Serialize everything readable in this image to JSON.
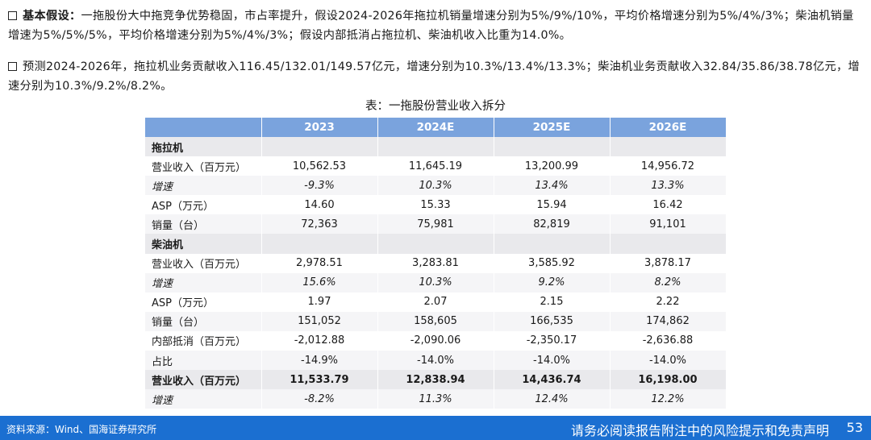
{
  "para1": {
    "lead": "基本假设：",
    "text": "一拖股份大中拖竞争优势稳固，市占率提升，假设2024-2026年拖拉机销量增速分别为5%/9%/10%，平均价格增速分别为5%/4%/3%；柴油机销量增速为5%/5%/5%，平均价格增速分别为5%/4%/3%；假设内部抵消占拖拉机、柴油机收入比重为14.0%。"
  },
  "para2": {
    "text": "预测2024-2026年，拖拉机业务贡献收入116.45/132.01/149.57亿元，增速分别为10.3%/13.4%/13.3%；柴油机业务贡献收入32.84/35.86/38.78亿元，增速分别为10.3%/9.2%/8.2%。"
  },
  "table": {
    "caption": "表：一拖股份营业收入拆分",
    "headers": [
      "",
      "2023",
      "2024E",
      "2025E",
      "2026E"
    ],
    "rows": [
      {
        "cells": [
          "拖拉机",
          "",
          "",
          "",
          ""
        ],
        "style": "sect"
      },
      {
        "cells": [
          "营业收入（百万元）",
          "10,562.53",
          "11,645.19",
          "13,200.99",
          "14,956.72"
        ],
        "style": "row-even"
      },
      {
        "cells": [
          "增速",
          "-9.3%",
          "10.3%",
          "13.4%",
          "13.3%"
        ],
        "style": "row-odd italic"
      },
      {
        "cells": [
          "ASP（万元）",
          "14.60",
          "15.33",
          "15.94",
          "16.42"
        ],
        "style": "row-even"
      },
      {
        "cells": [
          "销量（台）",
          "72,363",
          "75,981",
          "82,819",
          "91,101"
        ],
        "style": "row-odd"
      },
      {
        "cells": [
          "柴油机",
          "",
          "",
          "",
          ""
        ],
        "style": "sect"
      },
      {
        "cells": [
          "营业收入（百万元）",
          "2,978.51",
          "3,283.81",
          "3,585.92",
          "3,878.17"
        ],
        "style": "row-even"
      },
      {
        "cells": [
          "增速",
          "15.6%",
          "10.3%",
          "9.2%",
          "8.2%"
        ],
        "style": "row-odd italic"
      },
      {
        "cells": [
          "ASP（万元）",
          "1.97",
          "2.07",
          "2.15",
          "2.22"
        ],
        "style": "row-even"
      },
      {
        "cells": [
          "销量（台）",
          "151,052",
          "158,605",
          "166,535",
          "174,862"
        ],
        "style": "row-odd"
      },
      {
        "cells": [
          "内部抵消（百万元）",
          "-2,012.88",
          "-2,090.06",
          "-2,350.17",
          "-2,636.88"
        ],
        "style": "row-even"
      },
      {
        "cells": [
          "占比",
          "-14.9%",
          "-14.0%",
          "-14.0%",
          "-14.0%"
        ],
        "style": "row-odd"
      },
      {
        "cells": [
          "营业收入（百万元）",
          "11,533.79",
          "12,838.94",
          "14,436.74",
          "16,198.00"
        ],
        "style": "total"
      },
      {
        "cells": [
          "增速",
          "-8.2%",
          "11.3%",
          "12.4%",
          "12.2%"
        ],
        "style": "row-odd italic"
      }
    ]
  },
  "footer": {
    "source": "资料来源：Wind、国海证券研究所",
    "notice": "请务必阅读报告附注中的风险提示和免责声明",
    "page": "53"
  },
  "colors": {
    "header_bg": "#7aa3dd",
    "footer_bg": "#1b6fd1"
  }
}
